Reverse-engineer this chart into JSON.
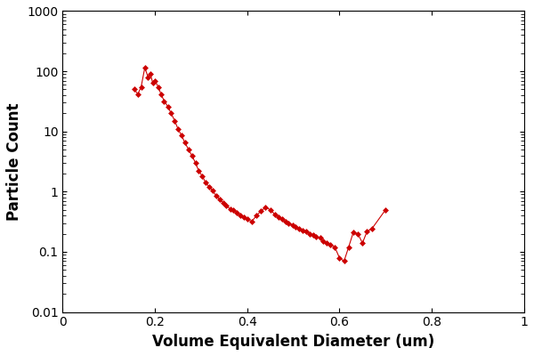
{
  "x": [
    0.155,
    0.163,
    0.17,
    0.178,
    0.185,
    0.19,
    0.195,
    0.2,
    0.207,
    0.213,
    0.22,
    0.228,
    0.235,
    0.243,
    0.25,
    0.258,
    0.265,
    0.273,
    0.28,
    0.288,
    0.295,
    0.303,
    0.31,
    0.318,
    0.325,
    0.333,
    0.34,
    0.348,
    0.355,
    0.363,
    0.37,
    0.378,
    0.385,
    0.393,
    0.4,
    0.41,
    0.42,
    0.43,
    0.44,
    0.45,
    0.46,
    0.468,
    0.475,
    0.483,
    0.49,
    0.498,
    0.505,
    0.513,
    0.52,
    0.528,
    0.535,
    0.543,
    0.55,
    0.558,
    0.565,
    0.573,
    0.58,
    0.59,
    0.6,
    0.61,
    0.62,
    0.63,
    0.64,
    0.65,
    0.66,
    0.67,
    0.7
  ],
  "y": [
    50,
    42,
    55,
    115,
    80,
    90,
    65,
    70,
    55,
    42,
    32,
    26,
    20,
    15,
    11,
    8.5,
    6.5,
    5.0,
    4.0,
    3.0,
    2.2,
    1.8,
    1.4,
    1.2,
    1.05,
    0.85,
    0.75,
    0.65,
    0.58,
    0.52,
    0.5,
    0.45,
    0.4,
    0.38,
    0.35,
    0.32,
    0.4,
    0.48,
    0.55,
    0.5,
    0.42,
    0.38,
    0.35,
    0.32,
    0.3,
    0.28,
    0.26,
    0.24,
    0.23,
    0.22,
    0.2,
    0.19,
    0.18,
    0.17,
    0.15,
    0.14,
    0.13,
    0.12,
    0.08,
    0.07,
    0.12,
    0.21,
    0.2,
    0.14,
    0.22,
    0.24,
    0.5
  ],
  "line_color": "#cc0000",
  "marker": "D",
  "marker_size": 3,
  "line_width": 0.8,
  "xlabel": "Volume Equivalent Diameter (um)",
  "ylabel": "Particle Count",
  "xlim": [
    0,
    1
  ],
  "ylim_log": [
    0.01,
    1000
  ],
  "xticks": [
    0,
    0.2,
    0.4,
    0.6,
    0.8,
    1.0
  ],
  "xtick_labels": [
    "0",
    "0.2",
    "0.4",
    "0.6",
    "0.8",
    "1"
  ],
  "ytick_vals": [
    0.01,
    0.1,
    1,
    10,
    100,
    1000
  ],
  "ytick_labels": [
    "0.01",
    "0.1",
    "1",
    "10",
    "100",
    "1000"
  ],
  "background_color": "#ffffff",
  "xlabel_fontsize": 12,
  "ylabel_fontsize": 12,
  "tick_fontsize": 10
}
